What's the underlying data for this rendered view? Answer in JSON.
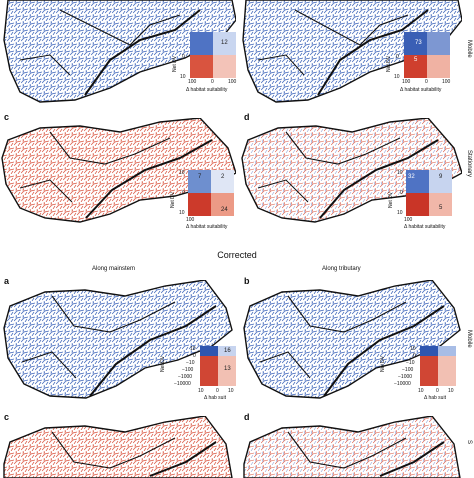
{
  "top_section": {
    "rows": [
      {
        "side_label": "Mobile",
        "panels": [
          {
            "label": "",
            "inset": {
              "q": [
                "",
                "12",
                "",
                ""
              ],
              "ylabel": "Net DV",
              "xlabel": "Δ habitat suitability",
              "ticks_x": [
                "100",
                "0",
                "100"
              ],
              "ticks_y": [
                "0",
                "10"
              ],
              "variant": "blue"
            }
          },
          {
            "label": "",
            "inset": {
              "q": [
                "",
                "73",
                "5",
                ""
              ],
              "ylabel": "Net DV",
              "xlabel": "Δ habitat suitability",
              "ticks_x": [
                "100",
                "0",
                "100"
              ],
              "ticks_y": [
                "0",
                "10"
              ],
              "variant": "blue"
            }
          }
        ]
      },
      {
        "side_label": "Stationary",
        "panels": [
          {
            "label": "c",
            "inset": {
              "q": [
                "7",
                "2",
                "",
                "24"
              ],
              "ylabel": "Net DV",
              "xlabel": "Δ habitat suitability",
              "ticks_x": [
                "100",
                "0",
                "100"
              ],
              "ticks_y": [
                "10",
                "0",
                "10"
              ],
              "variant": "red"
            }
          },
          {
            "label": "d",
            "inset": {
              "q": [
                "32",
                "9",
                "",
                "5"
              ],
              "ylabel": "Net DV",
              "xlabel": "Δ habitat suitability",
              "ticks_x": [
                "100",
                "0",
                "100"
              ],
              "ticks_y": [
                "10",
                "0",
                "10"
              ],
              "variant": "red"
            }
          }
        ]
      }
    ]
  },
  "section_title": "Corrected",
  "column_headers": [
    "Along mainstem",
    "Along tributary"
  ],
  "bottom_section": {
    "rows": [
      {
        "side_label": "Mobile",
        "panels": [
          {
            "label": "a",
            "inset": {
              "q": [
                "",
                "16",
                "",
                "13"
              ],
              "ylabel": "Net DV",
              "xlabel": "Δ hab suit",
              "ticks_x": [
                "10",
                "0",
                "10"
              ],
              "ticks_y": [
                "10",
                "0",
                "−10",
                "−100",
                "−1000",
                "−10000"
              ],
              "variant": "blue"
            }
          },
          {
            "label": "b",
            "inset": {
              "q": [
                "",
                "",
                "",
                ""
              ],
              "ylabel": "Net DV",
              "xlabel": "Δ hab suit",
              "ticks_x": [
                "10",
                "0",
                "10"
              ],
              "ticks_y": [
                "10",
                "0",
                "−10",
                "−100",
                "−1000",
                "−10000"
              ],
              "variant": "blue"
            }
          }
        ]
      },
      {
        "side_label": "S",
        "panels": [
          {
            "label": "c",
            "inset": null
          },
          {
            "label": "d",
            "inset": null
          }
        ]
      }
    ]
  },
  "colors": {
    "blue": "#3a62b8",
    "red": "#d9543f",
    "light_blue": "#9fb6e3",
    "light_red": "#f0a898",
    "outline": "#111111"
  }
}
